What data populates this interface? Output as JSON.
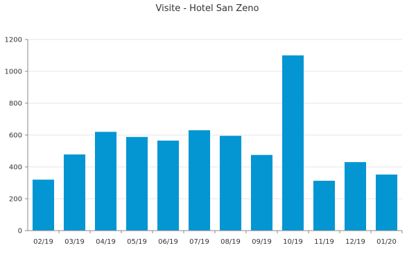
{
  "chart_data": {
    "type": "bar",
    "title": "Visite - Hotel San Zeno",
    "xlabel": "",
    "ylabel": "",
    "categories": [
      "02/19",
      "03/19",
      "04/19",
      "05/19",
      "06/19",
      "07/19",
      "08/19",
      "09/19",
      "10/19",
      "11/19",
      "12/19",
      "01/20"
    ],
    "values": [
      320,
      478,
      620,
      588,
      565,
      630,
      595,
      475,
      1100,
      313,
      430,
      352
    ],
    "ylim": [
      0,
      1200
    ],
    "yticks": [
      "0",
      "200",
      "400",
      "600",
      "800",
      "1000",
      "1200"
    ],
    "grid": true,
    "legend": "none",
    "bar_color": "#0496D2",
    "grid_color": "#E6E6E6",
    "axis_color": "#888888"
  }
}
